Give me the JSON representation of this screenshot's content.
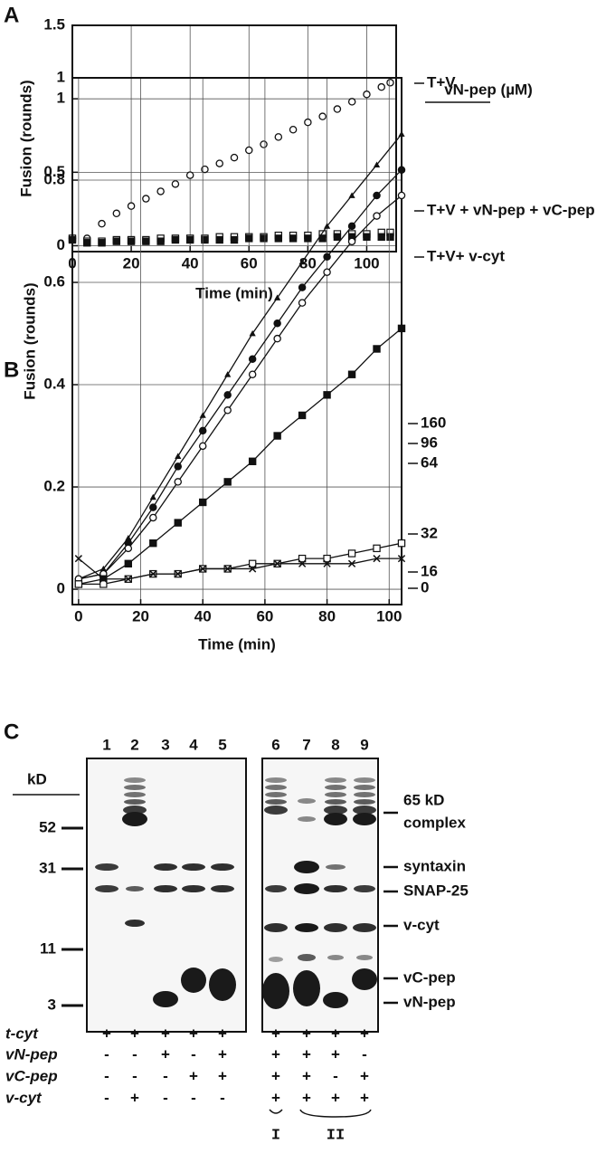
{
  "panel_labels": [
    "A",
    "B",
    "C"
  ],
  "chart_data": [
    {
      "type": "scatter",
      "lines": false,
      "grid": true,
      "y_label": "Fusion (rounds)",
      "x_label": "Time (min)",
      "xlim": [
        0,
        110
      ],
      "xticks": [
        0,
        20,
        40,
        60,
        80,
        100
      ],
      "ylim": [
        -0.04,
        1.5
      ],
      "yticks": [
        0,
        0.5,
        1,
        1.5
      ],
      "x": [
        0,
        5,
        10,
        15,
        20,
        25,
        30,
        35,
        40,
        45,
        50,
        55,
        60,
        65,
        70,
        75,
        80,
        85,
        90,
        95,
        100,
        105,
        108
      ],
      "series": [
        {
          "name": "T+V",
          "marker": "open-circle",
          "color": "#111111",
          "values": [
            0.05,
            0.05,
            0.15,
            0.22,
            0.27,
            0.32,
            0.37,
            0.42,
            0.48,
            0.52,
            0.56,
            0.6,
            0.65,
            0.69,
            0.74,
            0.79,
            0.84,
            0.88,
            0.93,
            0.98,
            1.03,
            1.08,
            1.11
          ]
        },
        {
          "name": "T+V + vN-pep + vC-pep",
          "marker": "open-square",
          "color": "#111111",
          "values": [
            0.05,
            0.03,
            0.03,
            0.04,
            0.04,
            0.04,
            0.05,
            0.05,
            0.05,
            0.05,
            0.06,
            0.06,
            0.06,
            0.06,
            0.07,
            0.07,
            0.07,
            0.08,
            0.08,
            0.08,
            0.08,
            0.09,
            0.09
          ]
        },
        {
          "name": "T+V+ v-cyt",
          "marker": "filled-square",
          "color": "#111111",
          "values": [
            0.04,
            0.02,
            0.02,
            0.03,
            0.03,
            0.03,
            0.03,
            0.04,
            0.04,
            0.04,
            0.04,
            0.04,
            0.05,
            0.05,
            0.05,
            0.05,
            0.05,
            0.05,
            0.06,
            0.06,
            0.06,
            0.06,
            0.06
          ]
        }
      ]
    },
    {
      "type": "scatter",
      "lines": true,
      "grid": true,
      "y_label": "Fusion (rounds)",
      "x_label": "Time (min)",
      "legend_title": "vN-pep (µM)",
      "xlim": [
        -2,
        104
      ],
      "xticks": [
        0,
        20,
        40,
        60,
        80,
        100
      ],
      "ylim": [
        -0.03,
        1
      ],
      "yticks": [
        0,
        0.2,
        0.4,
        0.6,
        0.8,
        1
      ],
      "x": [
        0,
        8,
        16,
        24,
        32,
        40,
        48,
        56,
        64,
        72,
        80,
        88,
        96,
        104
      ],
      "series": [
        {
          "name": "160",
          "marker": "filled-triangle",
          "color": "#111111",
          "values": [
            0.02,
            0.04,
            0.1,
            0.18,
            0.26,
            0.34,
            0.42,
            0.5,
            0.57,
            0.64,
            0.71,
            0.77,
            0.83,
            0.89
          ]
        },
        {
          "name": "96",
          "marker": "filled-circle",
          "color": "#111111",
          "values": [
            0.02,
            0.03,
            0.09,
            0.16,
            0.24,
            0.31,
            0.38,
            0.45,
            0.52,
            0.59,
            0.65,
            0.71,
            0.77,
            0.82
          ]
        },
        {
          "name": "64",
          "marker": "open-circle",
          "color": "#111111",
          "values": [
            0.02,
            0.03,
            0.08,
            0.14,
            0.21,
            0.28,
            0.35,
            0.42,
            0.49,
            0.56,
            0.62,
            0.68,
            0.73,
            0.77
          ]
        },
        {
          "name": "32",
          "marker": "filled-square",
          "color": "#111111",
          "values": [
            0.01,
            0.02,
            0.05,
            0.09,
            0.13,
            0.17,
            0.21,
            0.25,
            0.3,
            0.34,
            0.38,
            0.42,
            0.47,
            0.51
          ]
        },
        {
          "name": "16",
          "marker": "open-square",
          "color": "#111111",
          "values": [
            0.01,
            0.01,
            0.02,
            0.03,
            0.03,
            0.04,
            0.04,
            0.05,
            0.05,
            0.06,
            0.06,
            0.07,
            0.08,
            0.09
          ]
        },
        {
          "name": "0",
          "marker": "cross",
          "color": "#111111",
          "values": [
            0.06,
            0.02,
            0.02,
            0.03,
            0.03,
            0.04,
            0.04,
            0.04,
            0.05,
            0.05,
            0.05,
            0.05,
            0.06,
            0.06
          ]
        }
      ]
    }
  ],
  "gel": {
    "lane_numbers": [
      "1",
      "2",
      "3",
      "4",
      "5",
      "6",
      "7",
      "8",
      "9"
    ],
    "kd_label": "kD",
    "markers": [
      "52",
      "31",
      "11",
      "3"
    ],
    "band_labels": [
      "65 kD",
      "complex",
      "syntaxin",
      "SNAP-25",
      "v-cyt",
      "vC-pep",
      "vN-pep"
    ],
    "rows": [
      {
        "label": "t-cyt",
        "signs": [
          "+",
          "+",
          "+",
          "+",
          "+",
          "+",
          "+",
          "+",
          "+"
        ]
      },
      {
        "label": "vN-pep",
        "signs": [
          "-",
          "-",
          "+",
          "-",
          "+",
          "+",
          "+",
          "+",
          "-"
        ]
      },
      {
        "label": "vC-pep",
        "signs": [
          "-",
          "-",
          "-",
          "+",
          "+",
          "+",
          "+",
          "-",
          "+"
        ]
      },
      {
        "label": "v-cyt",
        "signs": [
          "-",
          "+",
          "-",
          "-",
          "-",
          "+",
          "+",
          "+",
          "+"
        ]
      }
    ],
    "groups": [
      "I",
      "II"
    ]
  }
}
